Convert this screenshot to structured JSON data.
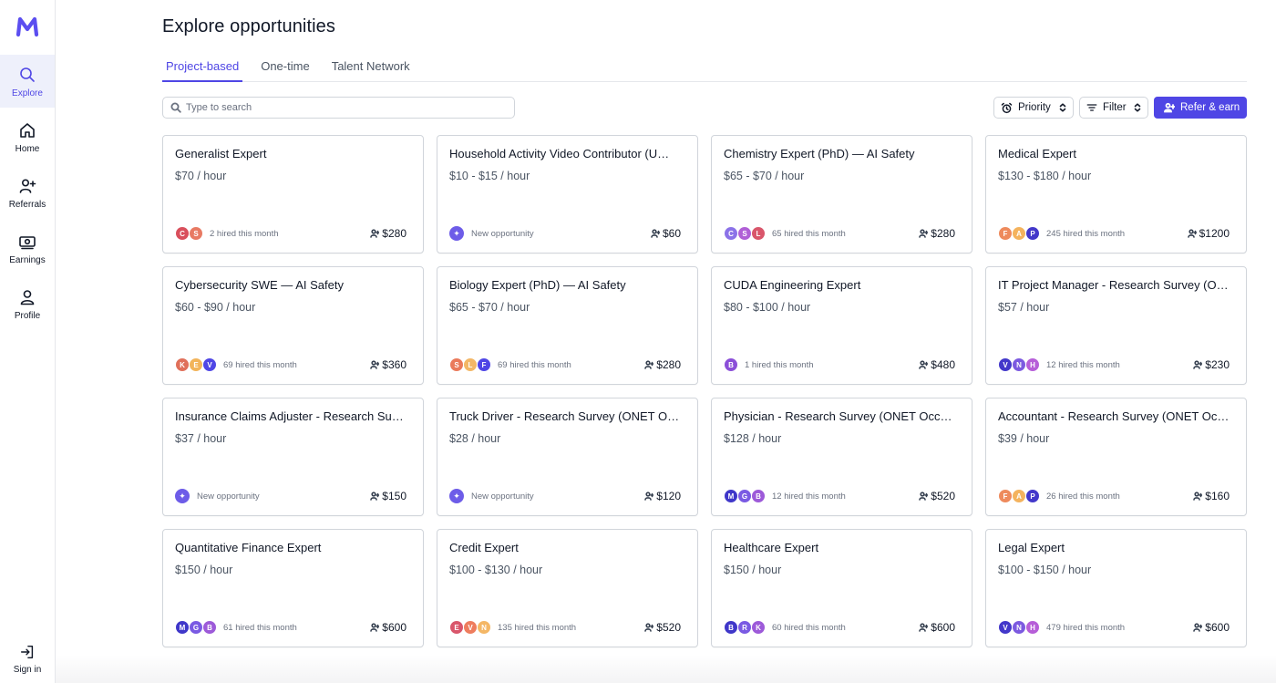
{
  "app": {
    "logo_icon": "m-logo-icon",
    "brand_color": "#4f46e5"
  },
  "sidebar": {
    "items": [
      {
        "label": "Explore",
        "icon": "search-icon",
        "active": true
      },
      {
        "label": "Home",
        "icon": "home-icon",
        "active": false
      },
      {
        "label": "Referrals",
        "icon": "user-plus-icon",
        "active": false
      },
      {
        "label": "Earnings",
        "icon": "money-icon",
        "active": false
      },
      {
        "label": "Profile",
        "icon": "user-icon",
        "active": false
      }
    ],
    "sign_in": "Sign in"
  },
  "page": {
    "title": "Explore opportunities"
  },
  "tabs": [
    {
      "label": "Project-based",
      "active": true
    },
    {
      "label": "One-time",
      "active": false
    },
    {
      "label": "Talent Network",
      "active": false
    }
  ],
  "search": {
    "placeholder": "Type to search",
    "value": ""
  },
  "controls": {
    "priority_label": "Priority",
    "filter_label": "Filter",
    "refer_label": "Refer & earn"
  },
  "cards": [
    {
      "title": "Generalist Expert",
      "rate": "$70 / hour",
      "avatars": [
        {
          "l": "C",
          "c": "#d94f5c"
        },
        {
          "l": "S",
          "c": "#e87a63"
        }
      ],
      "status": "2 hired this month",
      "new": false,
      "reward": "$280"
    },
    {
      "title": "Household Activity Video Contributor (U…",
      "rate": "$10 - $15 / hour",
      "avatars": [],
      "status": "New opportunity",
      "new": true,
      "reward": "$60"
    },
    {
      "title": "Chemistry Expert (PhD) — AI Safety",
      "rate": "$65 - $70 / hour",
      "avatars": [
        {
          "l": "C",
          "c": "#8b72e8"
        },
        {
          "l": "S",
          "c": "#b05fd6"
        },
        {
          "l": "L",
          "c": "#d9566b"
        }
      ],
      "status": "65 hired this month",
      "new": false,
      "reward": "$280"
    },
    {
      "title": "Medical Expert",
      "rate": "$130 - $180 / hour",
      "avatars": [
        {
          "l": "F",
          "c": "#ee8a5c"
        },
        {
          "l": "A",
          "c": "#f4b35e"
        },
        {
          "l": "P",
          "c": "#4338ca"
        }
      ],
      "status": "245 hired this month",
      "new": false,
      "reward": "$1200"
    },
    {
      "title": "Cybersecurity SWE — AI Safety",
      "rate": "$60 - $90 / hour",
      "avatars": [
        {
          "l": "K",
          "c": "#e0705a"
        },
        {
          "l": "E",
          "c": "#f2b45a"
        },
        {
          "l": "V",
          "c": "#4f46e5"
        }
      ],
      "status": "69 hired this month",
      "new": false,
      "reward": "$360"
    },
    {
      "title": "Biology Expert (PhD) — AI Safety",
      "rate": "$65 - $70 / hour",
      "avatars": [
        {
          "l": "S",
          "c": "#ea7a5b"
        },
        {
          "l": "L",
          "c": "#f3b766"
        },
        {
          "l": "F",
          "c": "#4f46e5"
        }
      ],
      "status": "69 hired this month",
      "new": false,
      "reward": "$280"
    },
    {
      "title": "CUDA Engineering Expert",
      "rate": "$80 - $100 / hour",
      "avatars": [
        {
          "l": "B",
          "c": "#8b4fd8"
        }
      ],
      "status": "1 hired this month",
      "new": false,
      "reward": "$480"
    },
    {
      "title": "IT Project Manager - Research Survey (O…",
      "rate": "$57 / hour",
      "avatars": [
        {
          "l": "V",
          "c": "#4338ca"
        },
        {
          "l": "N",
          "c": "#7c5ae0"
        },
        {
          "l": "H",
          "c": "#b65ed8"
        }
      ],
      "status": "12 hired this month",
      "new": false,
      "reward": "$230"
    },
    {
      "title": "Insurance Claims Adjuster - Research Su…",
      "rate": "$37 / hour",
      "avatars": [],
      "status": "New opportunity",
      "new": true,
      "reward": "$150"
    },
    {
      "title": "Truck Driver - Research Survey (ONET O…",
      "rate": "$28 / hour",
      "avatars": [],
      "status": "New opportunity",
      "new": true,
      "reward": "$120"
    },
    {
      "title": "Physician - Research Survey (ONET Occ…",
      "rate": "$128 / hour",
      "avatars": [
        {
          "l": "M",
          "c": "#3f37c9"
        },
        {
          "l": "G",
          "c": "#7a5ae3"
        },
        {
          "l": "B",
          "c": "#9d5ad9"
        }
      ],
      "status": "12 hired this month",
      "new": false,
      "reward": "$520"
    },
    {
      "title": "Accountant - Research Survey (ONET Oc…",
      "rate": "$39 / hour",
      "avatars": [
        {
          "l": "F",
          "c": "#ee8a5c"
        },
        {
          "l": "A",
          "c": "#f4b35e"
        },
        {
          "l": "P",
          "c": "#4338ca"
        }
      ],
      "status": "26 hired this month",
      "new": false,
      "reward": "$160"
    },
    {
      "title": "Quantitative Finance Expert",
      "rate": "$150 / hour",
      "avatars": [
        {
          "l": "M",
          "c": "#3f37c9"
        },
        {
          "l": "G",
          "c": "#7a5ae3"
        },
        {
          "l": "B",
          "c": "#9d5ad9"
        }
      ],
      "status": "61 hired this month",
      "new": false,
      "reward": "$600"
    },
    {
      "title": "Credit Expert",
      "rate": "$100 - $130 / hour",
      "avatars": [
        {
          "l": "E",
          "c": "#d9566b"
        },
        {
          "l": "V",
          "c": "#ee7d5e"
        },
        {
          "l": "N",
          "c": "#f4b766"
        }
      ],
      "status": "135 hired this month",
      "new": false,
      "reward": "$520"
    },
    {
      "title": "Healthcare Expert",
      "rate": "$150 / hour",
      "avatars": [
        {
          "l": "B",
          "c": "#3f37c9"
        },
        {
          "l": "R",
          "c": "#7a5ae3"
        },
        {
          "l": "K",
          "c": "#9d5ad9"
        }
      ],
      "status": "60 hired this month",
      "new": false,
      "reward": "$600"
    },
    {
      "title": "Legal Expert",
      "rate": "$100 - $150 / hour",
      "avatars": [
        {
          "l": "V",
          "c": "#4338ca"
        },
        {
          "l": "N",
          "c": "#7c5ae0"
        },
        {
          "l": "H",
          "c": "#b65ed8"
        }
      ],
      "status": "479 hired this month",
      "new": false,
      "reward": "$600"
    }
  ]
}
